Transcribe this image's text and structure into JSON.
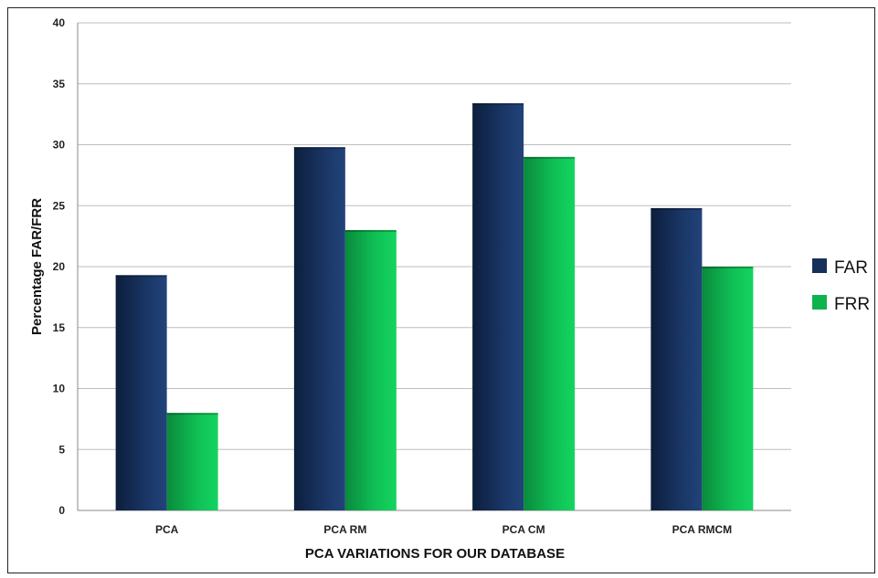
{
  "chart_data": {
    "type": "bar",
    "title": "",
    "xlabel": "PCA VARIATIONS FOR OUR DATABASE",
    "ylabel": "Percentage FAR/FRR",
    "categories": [
      "PCA",
      "PCA RM",
      "PCA CM",
      "PCA RMCM"
    ],
    "series": [
      {
        "name": "FAR",
        "values": [
          19.3,
          29.8,
          33.4,
          24.8
        ],
        "color": "#17305a"
      },
      {
        "name": "FRR",
        "values": [
          8.0,
          23.0,
          29.0,
          20.0
        ],
        "color": "#0fb34e"
      }
    ],
    "ylim": [
      0,
      40
    ],
    "yticks": [
      "0",
      "5",
      "10",
      "15",
      "20",
      "25",
      "30",
      "35",
      "40"
    ],
    "grid": true,
    "legend_position": "right"
  }
}
